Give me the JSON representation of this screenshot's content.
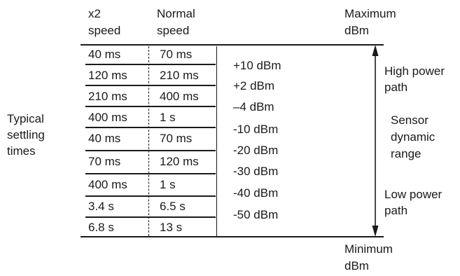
{
  "headers": {
    "x2_speed": [
      "x2",
      "speed"
    ],
    "normal_speed": [
      "Normal",
      "speed"
    ],
    "maximum": [
      "Maximum",
      "dBm"
    ],
    "minimum": [
      "Minimum",
      "dBm"
    ]
  },
  "left_label": [
    "Typical",
    "settling",
    "times"
  ],
  "rows": [
    {
      "x2": "40 ms",
      "normal": "70 ms"
    },
    {
      "x2": "120 ms",
      "normal": "210 ms"
    },
    {
      "x2": "210 ms",
      "normal": "400 ms"
    },
    {
      "x2": "400 ms",
      "normal": "1 s"
    },
    {
      "x2": "40 ms",
      "normal": "70 ms"
    },
    {
      "x2": "70 ms",
      "normal": "120 ms"
    },
    {
      "x2": "400 ms",
      "normal": "1 s"
    },
    {
      "x2": "3.4 s",
      "normal": "6.5 s"
    },
    {
      "x2": "6.8 s",
      "normal": "13 s"
    }
  ],
  "power_levels": [
    "+10 dBm",
    "+2 dBm",
    "–4 dBm",
    "-10 dBm",
    "-20 dBm",
    "-30 dBm",
    "-40 dBm",
    "-50 dBm"
  ],
  "right_labels": {
    "high_power": [
      "High power",
      "path"
    ],
    "sensor": [
      "Sensor",
      "dynamic",
      "range"
    ],
    "low_power": [
      "Low power",
      "path"
    ]
  }
}
